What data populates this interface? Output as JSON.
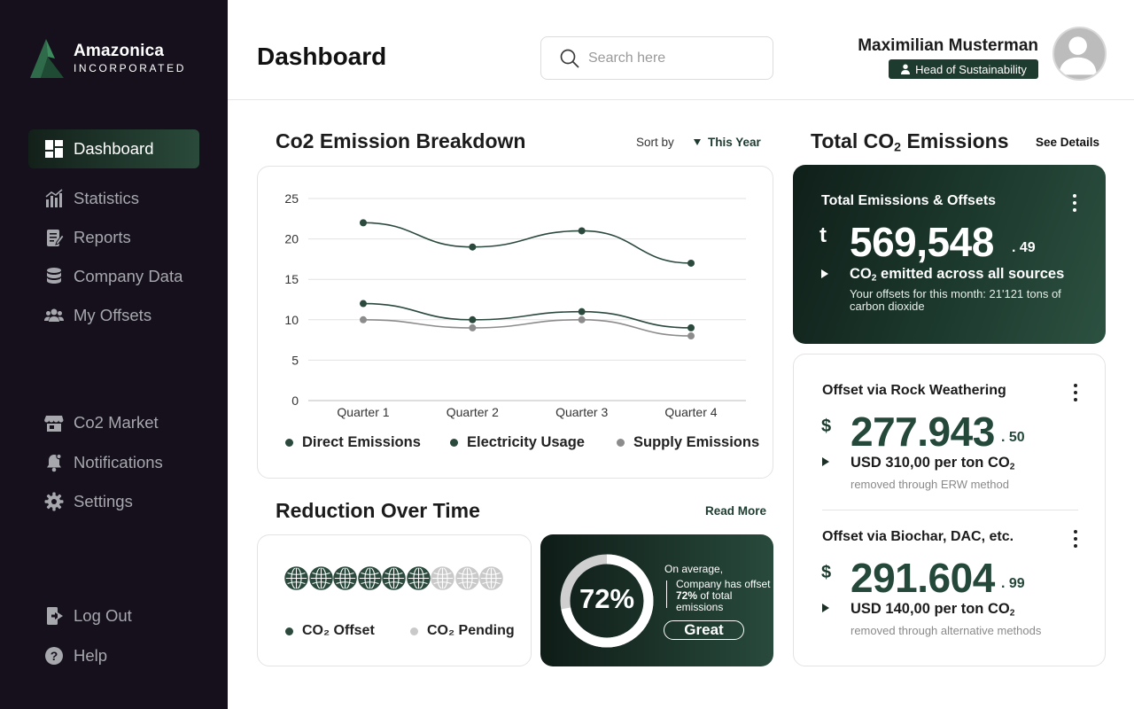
{
  "brand": {
    "name": "Amazonica",
    "sub": "INCORPORATED"
  },
  "nav": {
    "primary": [
      {
        "label": "Dashboard",
        "icon": "dashboard-icon",
        "active": true
      },
      {
        "label": "Statistics",
        "icon": "statistics-icon"
      },
      {
        "label": "Reports",
        "icon": "reports-icon"
      },
      {
        "label": "Company Data",
        "icon": "database-icon"
      },
      {
        "label": "My Offsets",
        "icon": "users-icon"
      }
    ],
    "secondary": [
      {
        "label": "Co2 Market",
        "icon": "store-icon"
      },
      {
        "label": "Notifications",
        "icon": "bell-icon"
      },
      {
        "label": "Settings",
        "icon": "gear-icon"
      }
    ],
    "footer": [
      {
        "label": "Log Out",
        "icon": "logout-icon"
      },
      {
        "label": "Help",
        "icon": "help-icon"
      }
    ]
  },
  "header": {
    "title": "Dashboard",
    "search_placeholder": "Search here",
    "user_name": "Maximilian Musterman",
    "user_role": "Head of Sustainability"
  },
  "breakdown": {
    "title": "Co2 Emission Breakdown",
    "sort_label": "Sort by",
    "sort_value": "This Year"
  },
  "chart_data": {
    "type": "line",
    "categories": [
      "Quarter 1",
      "Quarter 2",
      "Quarter 3",
      "Quarter 4"
    ],
    "ylim": [
      0,
      25
    ],
    "yticks": [
      0,
      5,
      10,
      15,
      20,
      25
    ],
    "grid": true,
    "legend_position": "bottom",
    "series": [
      {
        "name": "Direct Emissions",
        "values": [
          22,
          19,
          21,
          17
        ],
        "color": "#2b4a3d"
      },
      {
        "name": "Electricity Usage",
        "values": [
          12,
          10,
          11,
          9
        ],
        "color": "#2b4a3d"
      },
      {
        "name": "Supply Emissions",
        "values": [
          10,
          9,
          10,
          8
        ],
        "color": "#8c8c8c"
      }
    ]
  },
  "reduction": {
    "title": "Reduction Over Time",
    "read_more": "Read More",
    "offset_count": 6,
    "pending_count": 3,
    "legend_offset": "CO₂ Offset",
    "legend_pending": "CO₂ Pending",
    "color_offset": "#2b4a3d",
    "color_pending": "#c9c9c9",
    "percent_value": 0.72,
    "percent_label": "72%",
    "average_text": "On average,",
    "desc_pre": "Company has offset ",
    "desc_bold": "72%",
    "desc_post": " of total emissions",
    "rating": "Great"
  },
  "total": {
    "title_pre": "Total CO",
    "title_sub": "2",
    "title_post": " Emissions",
    "see_details": "See Details",
    "card_title": "Total Emissions & Offsets",
    "unit": "t",
    "value_main": "569,548",
    "value_dec": ". 49",
    "line1_pre": "CO",
    "line1_sub": "2",
    "line1_post": " emitted across all sources",
    "line2": "Your offsets for this month: 21'121 tons of carbon dioxide"
  },
  "offsets": [
    {
      "title": "Offset via Rock Weathering",
      "unit": "$",
      "value_main": "277.943",
      "value_dec": ". 50",
      "price_pre": "USD 310,00 per ton CO",
      "price_sub": "2",
      "note": "removed through ERW method"
    },
    {
      "title": "Offset via Biochar, DAC, etc.",
      "unit": "$",
      "value_main": "291.604",
      "value_dec": ". 99",
      "price_pre": "USD 140,00 per ton CO",
      "price_sub": "2",
      "note": "removed through alternative methods"
    }
  ]
}
